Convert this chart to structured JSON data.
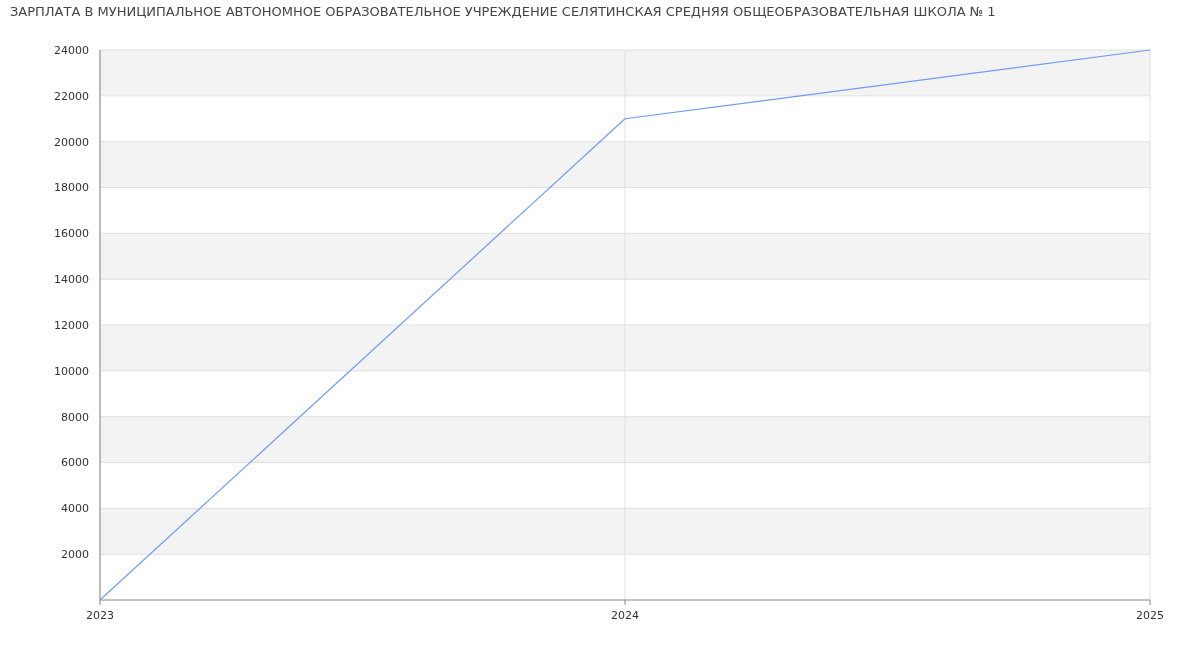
{
  "chart_data": {
    "type": "line",
    "title": "ЗАРПЛАТА В МУНИЦИПАЛЬНОЕ АВТОНОМНОЕ ОБРАЗОВАТЕЛЬНОЕ УЧРЕЖДЕНИЕ СЕЛЯТИНСКАЯ СРЕДНЯЯ ОБЩЕОБРАЗОВАТЕЛЬНАЯ ШКОЛА № 1",
    "x": [
      2023,
      2024,
      2025
    ],
    "series": [
      {
        "color": "#6f9cf0",
        "values": [
          0,
          21000,
          24000
        ]
      }
    ],
    "xlim": [
      2023,
      2025
    ],
    "xticks": [
      2023,
      2024,
      2025
    ],
    "ylim": [
      0,
      24000
    ],
    "yticks": [
      2000,
      4000,
      6000,
      8000,
      10000,
      12000,
      14000,
      16000,
      18000,
      20000,
      22000,
      24000
    ],
    "grid": true,
    "marker": "none",
    "line_style": "solid"
  }
}
